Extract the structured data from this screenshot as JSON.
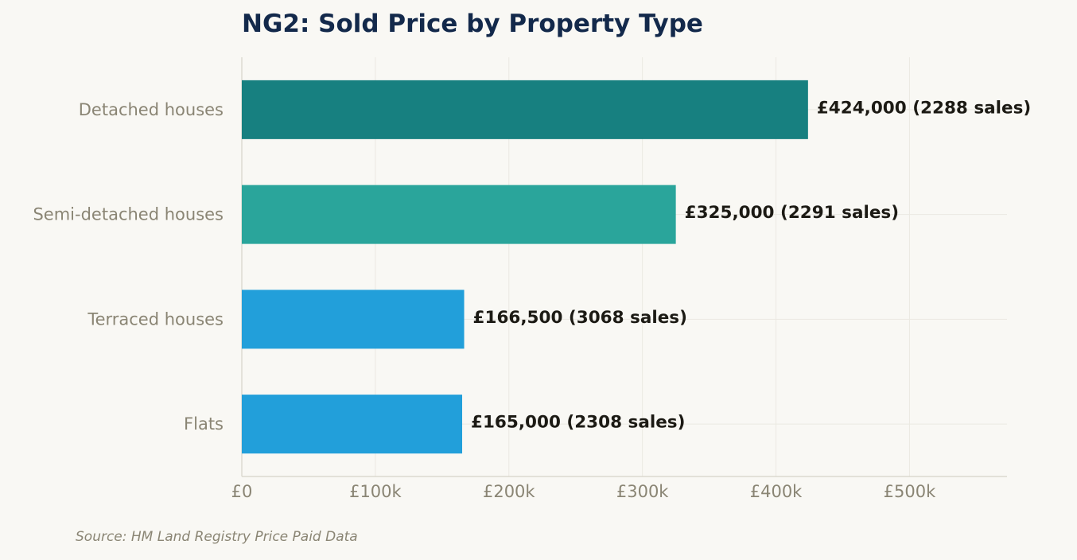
{
  "chart_data": {
    "type": "bar",
    "orientation": "horizontal",
    "title": "NG2: Sold Price by Property Type",
    "categories": [
      "Detached houses",
      "Semi-detached houses",
      "Terraced houses",
      "Flats"
    ],
    "values": [
      424000,
      325000,
      166500,
      165000
    ],
    "sales": [
      2288,
      2291,
      3068,
      2308
    ],
    "data_labels": [
      "£424,000  (2288 sales)",
      "£325,000  (2291 sales)",
      "£166,500  (3068 sales)",
      "£165,000  (2308 sales)"
    ],
    "bar_colors": [
      "#178080",
      "#2aa59b",
      "#229fda",
      "#229fda"
    ],
    "xlim": [
      0,
      573000
    ],
    "xticks": [
      0,
      100000,
      200000,
      300000,
      400000,
      500000
    ],
    "xtick_labels": [
      "£0",
      "£100k",
      "£200k",
      "£300k",
      "£400k",
      "£500k"
    ],
    "grid": true,
    "xlabel": "",
    "ylabel": ""
  },
  "footer": {
    "source": "Source: HM Land Registry Price Paid Data"
  }
}
